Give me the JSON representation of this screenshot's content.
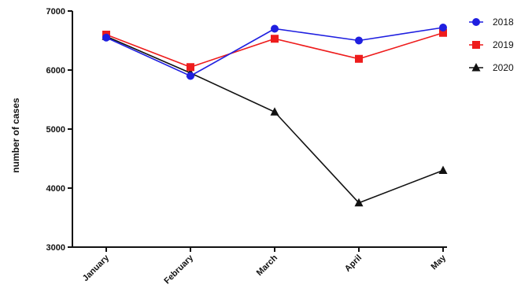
{
  "chart_data": {
    "type": "line",
    "title": "",
    "xlabel": "",
    "ylabel": "number of cases",
    "categories": [
      "January",
      "February",
      "March",
      "April",
      "May"
    ],
    "ylim": [
      3000,
      7000
    ],
    "yticks": [
      3000,
      4000,
      5000,
      6000,
      7000
    ],
    "grid": false,
    "legend_position": "top-right",
    "series": [
      {
        "name": "2018",
        "color": "#1f1fe0",
        "marker": "circle",
        "values": [
          6550,
          5900,
          6700,
          6500,
          6720
        ]
      },
      {
        "name": "2019",
        "color": "#ee1c1c",
        "marker": "square",
        "values": [
          6600,
          6050,
          6530,
          6190,
          6630
        ]
      },
      {
        "name": "2020",
        "color": "#111111",
        "marker": "triangle",
        "values": [
          6570,
          5950,
          5290,
          3750,
          4300
        ]
      }
    ]
  }
}
